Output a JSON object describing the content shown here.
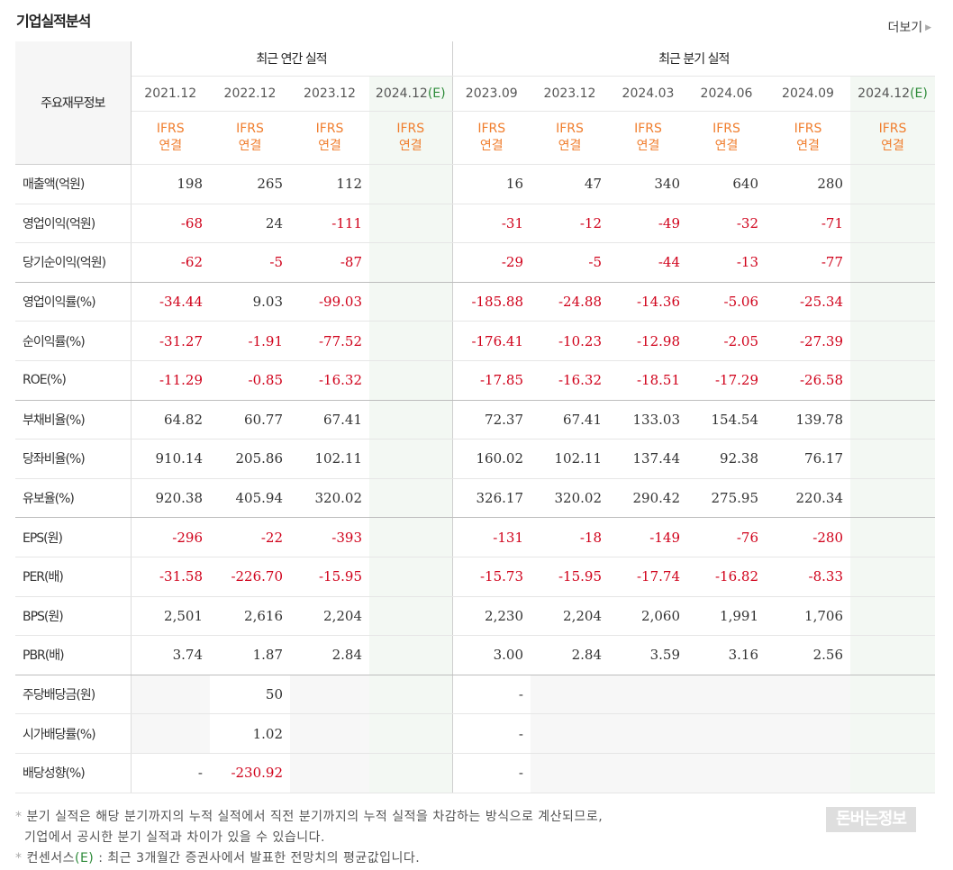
{
  "page_title": "기업실적분석",
  "more_label": "더보기",
  "corner_label": "주요재무정보",
  "groups": {
    "annual": "최근 연간 실적",
    "quarter": "최근 분기 실적"
  },
  "annual": [
    {
      "date": "2021.12",
      "est": ""
    },
    {
      "date": "2022.12",
      "est": ""
    },
    {
      "date": "2023.12",
      "est": ""
    },
    {
      "date": "2024.12",
      "est": "(E)"
    }
  ],
  "quarter": [
    {
      "date": "2023.09",
      "est": ""
    },
    {
      "date": "2023.12",
      "est": ""
    },
    {
      "date": "2024.03",
      "est": ""
    },
    {
      "date": "2024.06",
      "est": ""
    },
    {
      "date": "2024.09",
      "est": ""
    },
    {
      "date": "2024.12",
      "est": "(E)"
    }
  ],
  "ifrs_line1": "IFRS",
  "ifrs_line2": "연결",
  "rows": [
    {
      "label": "매출액(억원)",
      "values": [
        "198",
        "265",
        "112",
        "",
        "16",
        "47",
        "340",
        "640",
        "280",
        ""
      ]
    },
    {
      "label": "영업이익(억원)",
      "values": [
        "-68",
        "24",
        "-111",
        "",
        "-31",
        "-12",
        "-49",
        "-32",
        "-71",
        ""
      ]
    },
    {
      "label": "당기순이익(억원)",
      "values": [
        "-62",
        "-5",
        "-87",
        "",
        "-29",
        "-5",
        "-44",
        "-13",
        "-77",
        ""
      ]
    },
    {
      "label": "영업이익률(%)",
      "values": [
        "-34.44",
        "9.03",
        "-99.03",
        "",
        "-185.88",
        "-24.88",
        "-14.36",
        "-5.06",
        "-25.34",
        ""
      ]
    },
    {
      "label": "순이익률(%)",
      "values": [
        "-31.27",
        "-1.91",
        "-77.52",
        "",
        "-176.41",
        "-10.23",
        "-12.98",
        "-2.05",
        "-27.39",
        ""
      ]
    },
    {
      "label": "ROE(%)",
      "values": [
        "-11.29",
        "-0.85",
        "-16.32",
        "",
        "-17.85",
        "-16.32",
        "-18.51",
        "-17.29",
        "-26.58",
        ""
      ]
    },
    {
      "label": "부채비율(%)",
      "values": [
        "64.82",
        "60.77",
        "67.41",
        "",
        "72.37",
        "67.41",
        "133.03",
        "154.54",
        "139.78",
        ""
      ]
    },
    {
      "label": "당좌비율(%)",
      "values": [
        "910.14",
        "205.86",
        "102.11",
        "",
        "160.02",
        "102.11",
        "137.44",
        "92.38",
        "76.17",
        ""
      ]
    },
    {
      "label": "유보율(%)",
      "values": [
        "920.38",
        "405.94",
        "320.02",
        "",
        "326.17",
        "320.02",
        "290.42",
        "275.95",
        "220.34",
        ""
      ]
    },
    {
      "label": "EPS(원)",
      "values": [
        "-296",
        "-22",
        "-393",
        "",
        "-131",
        "-18",
        "-149",
        "-76",
        "-280",
        ""
      ]
    },
    {
      "label": "PER(배)",
      "values": [
        "-31.58",
        "-226.70",
        "-15.95",
        "",
        "-15.73",
        "-15.95",
        "-17.74",
        "-16.82",
        "-8.33",
        ""
      ]
    },
    {
      "label": "BPS(원)",
      "values": [
        "2,501",
        "2,616",
        "2,204",
        "",
        "2,230",
        "2,204",
        "2,060",
        "1,991",
        "1,706",
        ""
      ]
    },
    {
      "label": "PBR(배)",
      "values": [
        "3.74",
        "1.87",
        "2.84",
        "",
        "3.00",
        "2.84",
        "3.59",
        "3.16",
        "2.56",
        ""
      ]
    },
    {
      "label": "주당배당금(원)",
      "values": [
        "",
        "50",
        "",
        "",
        "-",
        "",
        "",
        "",
        "",
        ""
      ]
    },
    {
      "label": "시가배당률(%)",
      "values": [
        "",
        "1.02",
        "",
        "",
        "-",
        "",
        "",
        "",
        "",
        ""
      ]
    },
    {
      "label": "배당성향(%)",
      "values": [
        "-",
        "-230.92",
        "",
        "",
        "-",
        "",
        "",
        "",
        "",
        ""
      ]
    }
  ],
  "notes": {
    "line1": "분기 실적은 해당 분기까지의 누적 실적에서 직전 분기까지의 누적 실적을 차감하는 방식으로 계산되므로,",
    "line2": "기업에서 공시한 분기 실적과 차이가 있을 수 있습니다.",
    "line3_prefix": "컨센서스",
    "line3_e": "(E)",
    "line3_rest": ": 최근 3개월간 증권사에서 발표한 전망치의 평균값입니다."
  },
  "watermark": "돈버는정보",
  "colors": {
    "negative": "#d0021b",
    "ifrs": "#f07e2e",
    "estimate_bg": "#f3f8f3",
    "estimate_text": "#2e8b3a"
  }
}
